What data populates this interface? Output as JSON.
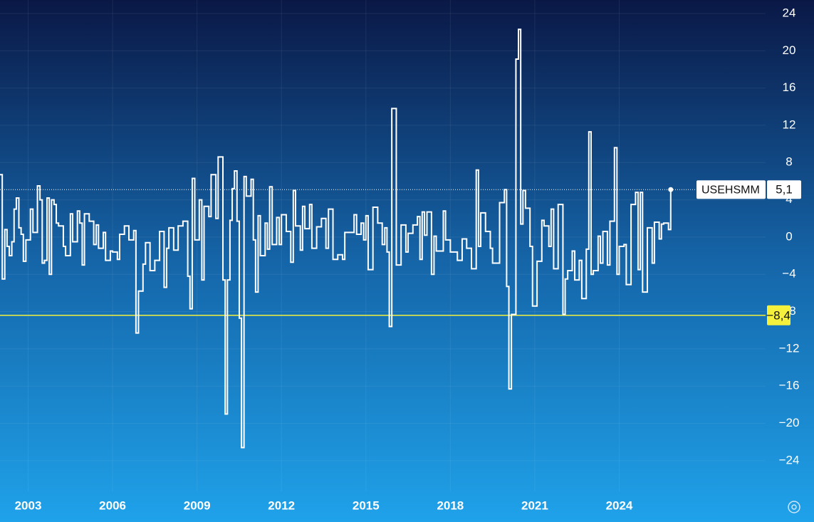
{
  "chart_data": {
    "type": "step-line",
    "x": [
      2002.0,
      2002.08,
      2002.17,
      2002.25,
      2002.33,
      2002.42,
      2002.5,
      2002.58,
      2002.67,
      2002.75,
      2002.83,
      2002.92,
      2003.08,
      2003.17,
      2003.33,
      2003.42,
      2003.5,
      2003.58,
      2003.67,
      2003.75,
      2003.83,
      2003.92,
      2004.0,
      2004.08,
      2004.25,
      2004.33,
      2004.5,
      2004.58,
      2004.75,
      2004.83,
      2004.92,
      2005.0,
      2005.17,
      2005.33,
      2005.42,
      2005.5,
      2005.67,
      2005.75,
      2005.92,
      2006.0,
      2006.17,
      2006.25,
      2006.42,
      2006.58,
      2006.75,
      2006.83,
      2006.92,
      2007.08,
      2007.17,
      2007.33,
      2007.5,
      2007.67,
      2007.83,
      2007.92,
      2008.0,
      2008.17,
      2008.33,
      2008.5,
      2008.67,
      2008.75,
      2008.83,
      2008.92,
      2009.08,
      2009.17,
      2009.25,
      2009.42,
      2009.5,
      2009.67,
      2009.75,
      2009.92,
      2010.0,
      2010.08,
      2010.17,
      2010.25,
      2010.33,
      2010.42,
      2010.5,
      2010.58,
      2010.67,
      2010.75,
      2010.92,
      2011.0,
      2011.08,
      2011.17,
      2011.25,
      2011.42,
      2011.5,
      2011.58,
      2011.67,
      2011.83,
      2011.92,
      2012.0,
      2012.17,
      2012.33,
      2012.42,
      2012.5,
      2012.67,
      2012.75,
      2012.83,
      2013.0,
      2013.08,
      2013.25,
      2013.42,
      2013.58,
      2013.67,
      2013.83,
      2014.0,
      2014.17,
      2014.25,
      2014.42,
      2014.58,
      2014.67,
      2014.83,
      2014.92,
      2015.0,
      2015.08,
      2015.25,
      2015.42,
      2015.58,
      2015.67,
      2015.75,
      2015.83,
      2015.92,
      2016.08,
      2016.25,
      2016.42,
      2016.5,
      2016.67,
      2016.83,
      2016.92,
      2017.0,
      2017.08,
      2017.17,
      2017.33,
      2017.42,
      2017.5,
      2017.75,
      2017.83,
      2018.0,
      2018.25,
      2018.42,
      2018.58,
      2018.75,
      2018.92,
      2019.0,
      2019.08,
      2019.25,
      2019.42,
      2019.5,
      2019.75,
      2019.92,
      2020.0,
      2020.08,
      2020.17,
      2020.33,
      2020.42,
      2020.5,
      2020.58,
      2020.67,
      2020.83,
      2020.92,
      2021.08,
      2021.25,
      2021.33,
      2021.5,
      2021.58,
      2021.67,
      2021.83,
      2022.0,
      2022.08,
      2022.17,
      2022.33,
      2022.42,
      2022.58,
      2022.67,
      2022.83,
      2022.92,
      2023.0,
      2023.08,
      2023.25,
      2023.33,
      2023.42,
      2023.58,
      2023.67,
      2023.83,
      2023.92,
      2024.0,
      2024.17,
      2024.25,
      2024.42,
      2024.58,
      2024.67,
      2024.75,
      2024.83,
      2025.0,
      2025.17,
      2025.25,
      2025.42,
      2025.5,
      2025.58,
      2025.75,
      2025.83
    ],
    "series": [
      {
        "name": "USEHSMM",
        "color": "#ffffff",
        "values": [
          6.7,
          -4.5,
          0.8,
          -1,
          -2,
          -0.5,
          3,
          4.2,
          1,
          0.3,
          -2.6,
          -0.3,
          3,
          0.5,
          5.5,
          4,
          -2.8,
          -2.5,
          4.2,
          -4,
          4,
          3.5,
          1.5,
          1.2,
          -1,
          -2,
          2.5,
          -0.5,
          2.8,
          1.5,
          -3,
          2.5,
          1.7,
          -0.8,
          1.3,
          -1.2,
          0.5,
          -2.5,
          -1.5,
          -1.6,
          -2.4,
          0.3,
          1.2,
          -0.3,
          0.7,
          -10.3,
          -5.8,
          -2.9,
          -0.6,
          -3.6,
          -2.5,
          0.6,
          -5.4,
          -1.2,
          1,
          -1.4,
          1.2,
          1.7,
          -4.2,
          -7.7,
          6.3,
          -0.3,
          4,
          -4.6,
          3.3,
          2.2,
          6.7,
          2,
          8.6,
          -4.6,
          -19,
          -4.6,
          1.8,
          5.2,
          7.1,
          1.7,
          -8.7,
          -22.6,
          6.5,
          4.4,
          6.2,
          -0.3,
          -5.9,
          2.3,
          -2,
          1.5,
          -1.3,
          5.4,
          -0.8,
          2.1,
          -0.8,
          2.4,
          0.6,
          -2.7,
          5,
          1.2,
          -1.4,
          3.3,
          0.9,
          3.5,
          -1.2,
          1.1,
          2,
          -1.2,
          3,
          -2.4,
          -1.9,
          -2.4,
          0.5,
          0.5,
          2.4,
          0.3,
          1.5,
          -0.3,
          2.3,
          -3.5,
          3.2,
          1.5,
          -0.8,
          1,
          -1.6,
          -9.6,
          13.8,
          -3,
          1.3,
          -1.6,
          0.4,
          1.3,
          2.2,
          -2.4,
          2.7,
          0.2,
          2.7,
          -4,
          0.1,
          -1.5,
          2.8,
          -0.3,
          -1.6,
          -2.5,
          -0.2,
          -1.2,
          -3.4,
          7.2,
          -1,
          2.6,
          0.6,
          -1.2,
          -2.8,
          3.7,
          5.1,
          -5.3,
          -16.3,
          -8.3,
          19.1,
          22.3,
          1.4,
          5,
          3.1,
          -1,
          -7.4,
          -2.6,
          1.8,
          1.2,
          -1,
          3,
          -3.4,
          3.5,
          -8.3,
          -4.5,
          -3.6,
          -1.5,
          -4.6,
          -2.5,
          -6.6,
          -1.3,
          11.3,
          -4,
          -3.6,
          0.1,
          -2.8,
          0.6,
          -3,
          1.7,
          9.6,
          -4,
          -1,
          -0.8,
          -5.1,
          3.5,
          4.8,
          -3.5,
          4.8,
          -5.9,
          1,
          -2.8,
          1.6,
          -0.2,
          1.4,
          1.5,
          0.8,
          5.1
        ]
      }
    ],
    "reference_lines": [
      {
        "value": 5.1,
        "label": "5,1",
        "color": "#ffffff"
      },
      {
        "value": -8.4,
        "label": "−8,4",
        "color": "#f5f03c"
      }
    ],
    "xlim": [
      2002,
      2029.2
    ],
    "xticks": [
      2003,
      2006,
      2009,
      2012,
      2015,
      2018,
      2021,
      2024
    ],
    "ylim": [
      -27.3,
      25.45
    ],
    "yticks": [
      {
        "value": -24,
        "label": "−24"
      },
      {
        "value": -20,
        "label": "−20"
      },
      {
        "value": -16,
        "label": "−16"
      },
      {
        "value": -12,
        "label": "−12"
      },
      {
        "value": -8,
        "label": "−8"
      },
      {
        "value": -4,
        "label": "−4"
      },
      0,
      4,
      8,
      12,
      16,
      20,
      24
    ],
    "grid": true
  }
}
